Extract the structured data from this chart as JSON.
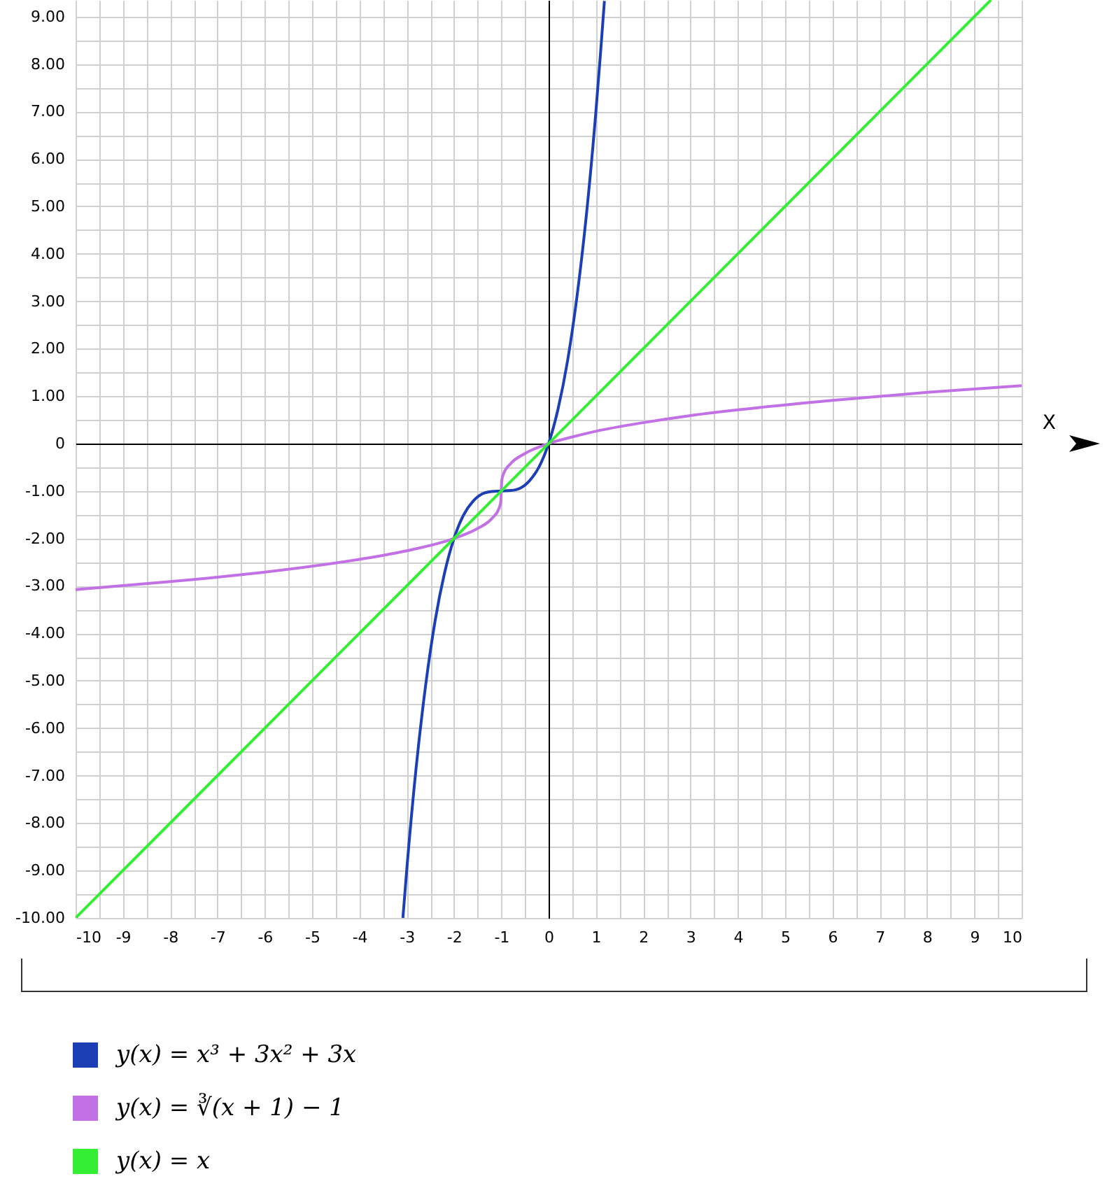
{
  "chart_data": {
    "type": "line",
    "xlabel": "X",
    "legend": "bottom",
    "grid": true,
    "marker": "none",
    "line_style": "solid",
    "xlim": [
      -10,
      10
    ],
    "ylim": [
      -10,
      9.35
    ],
    "xticks": [
      -10,
      {
        "value": -9.5,
        "label": null
      },
      -9,
      {
        "value": -8.5,
        "label": null
      },
      -8,
      {
        "value": -7.5,
        "label": null
      },
      -7,
      {
        "value": -6.5,
        "label": null
      },
      -6,
      {
        "value": -5.5,
        "label": null
      },
      -5,
      {
        "value": -4.5,
        "label": null
      },
      -4,
      {
        "value": -3.5,
        "label": null
      },
      -3,
      {
        "value": -2.5,
        "label": null
      },
      -2,
      {
        "value": -1.5,
        "label": null
      },
      -1,
      {
        "value": -0.5,
        "label": null
      },
      0,
      {
        "value": 0.5,
        "label": null
      },
      1,
      {
        "value": 1.5,
        "label": null
      },
      2,
      {
        "value": 2.5,
        "label": null
      },
      3,
      {
        "value": 3.5,
        "label": null
      },
      4,
      {
        "value": 4.5,
        "label": null
      },
      5,
      {
        "value": 5.5,
        "label": null
      },
      6,
      {
        "value": 6.5,
        "label": null
      },
      7,
      {
        "value": 7.5,
        "label": null
      },
      8,
      {
        "value": 8.5,
        "label": null
      },
      9,
      {
        "value": 9.5,
        "label": null
      },
      10
    ],
    "yticks": [
      {
        "value": -10,
        "label": "-10.00"
      },
      {
        "value": -9.5,
        "label": null
      },
      {
        "value": -9,
        "label": "-9.00"
      },
      {
        "value": -8.5,
        "label": null
      },
      {
        "value": -8,
        "label": "-8.00"
      },
      {
        "value": -7.5,
        "label": null
      },
      {
        "value": -7,
        "label": "-7.00"
      },
      {
        "value": -6.5,
        "label": null
      },
      {
        "value": -6,
        "label": "-6.00"
      },
      {
        "value": -5.5,
        "label": null
      },
      {
        "value": -5,
        "label": "-5.00"
      },
      {
        "value": -4.5,
        "label": null
      },
      {
        "value": -4,
        "label": "-4.00"
      },
      {
        "value": -3.5,
        "label": null
      },
      {
        "value": -3,
        "label": "-3.00"
      },
      {
        "value": -2.5,
        "label": null
      },
      {
        "value": -2,
        "label": "-2.00"
      },
      {
        "value": -1.5,
        "label": null
      },
      {
        "value": -1,
        "label": "-1.00"
      },
      {
        "value": -0.5,
        "label": null
      },
      0,
      {
        "value": 0.5,
        "label": null
      },
      {
        "value": 1,
        "label": "1.00"
      },
      {
        "value": 1.5,
        "label": null
      },
      {
        "value": 2,
        "label": "2.00"
      },
      {
        "value": 2.5,
        "label": null
      },
      {
        "value": 3,
        "label": "3.00"
      },
      {
        "value": 3.5,
        "label": null
      },
      {
        "value": 4,
        "label": "4.00"
      },
      {
        "value": 4.5,
        "label": null
      },
      {
        "value": 5,
        "label": "5.00"
      },
      {
        "value": 5.5,
        "label": null
      },
      {
        "value": 6,
        "label": "6.00"
      },
      {
        "value": 6.5,
        "label": null
      },
      {
        "value": 7,
        "label": "7.00"
      },
      {
        "value": 7.5,
        "label": null
      },
      {
        "value": 8,
        "label": "8.00"
      },
      {
        "value": 8.5,
        "label": null
      },
      {
        "value": 9,
        "label": "9.00"
      }
    ],
    "series": [
      {
        "name": "y(x) = x³ + 3x² + 3x",
        "color": "#1c3fb5",
        "x": [
          -3.08,
          -3,
          -2.8,
          -2.6,
          -2.4,
          -2.2,
          -2,
          -1.8,
          -1.6,
          -1.4,
          -1.2,
          -1,
          -0.8,
          -0.6,
          -0.4,
          -0.2,
          0,
          0.2,
          0.4,
          0.6,
          0.8,
          1,
          1.1,
          1.18
        ],
        "values": [
          -10,
          -9,
          -6.83,
          -5.1,
          -3.74,
          -2.73,
          -2,
          -1.51,
          -1.22,
          -1.06,
          -1.01,
          -1,
          -0.99,
          -0.94,
          -0.78,
          -0.49,
          0,
          0.73,
          1.74,
          3.1,
          4.83,
          7,
          8.26,
          9.33
        ]
      },
      {
        "name": "y(x) = ∛(x + 1) − 1",
        "color": "#c270e6",
        "x": [
          -10,
          -8,
          -6,
          -4,
          -3,
          -2,
          -1.5,
          -1.2,
          -1.05,
          -1.01,
          -1,
          -0.99,
          -0.95,
          -0.8,
          -0.5,
          0,
          0.5,
          1,
          2,
          3,
          4,
          6,
          8,
          10
        ],
        "values": [
          -3.08,
          -2.91,
          -2.71,
          -2.44,
          -2.26,
          -2,
          -1.79,
          -1.58,
          -1.37,
          -1.22,
          -1,
          -0.78,
          -0.63,
          -0.42,
          -0.21,
          0,
          0.14,
          0.26,
          0.44,
          0.59,
          0.71,
          0.91,
          1.08,
          1.22
        ]
      },
      {
        "name": "y(x) = x",
        "color": "#33ee33",
        "x": [
          -10,
          9.35
        ],
        "values": [
          -10,
          9.35
        ]
      }
    ]
  }
}
